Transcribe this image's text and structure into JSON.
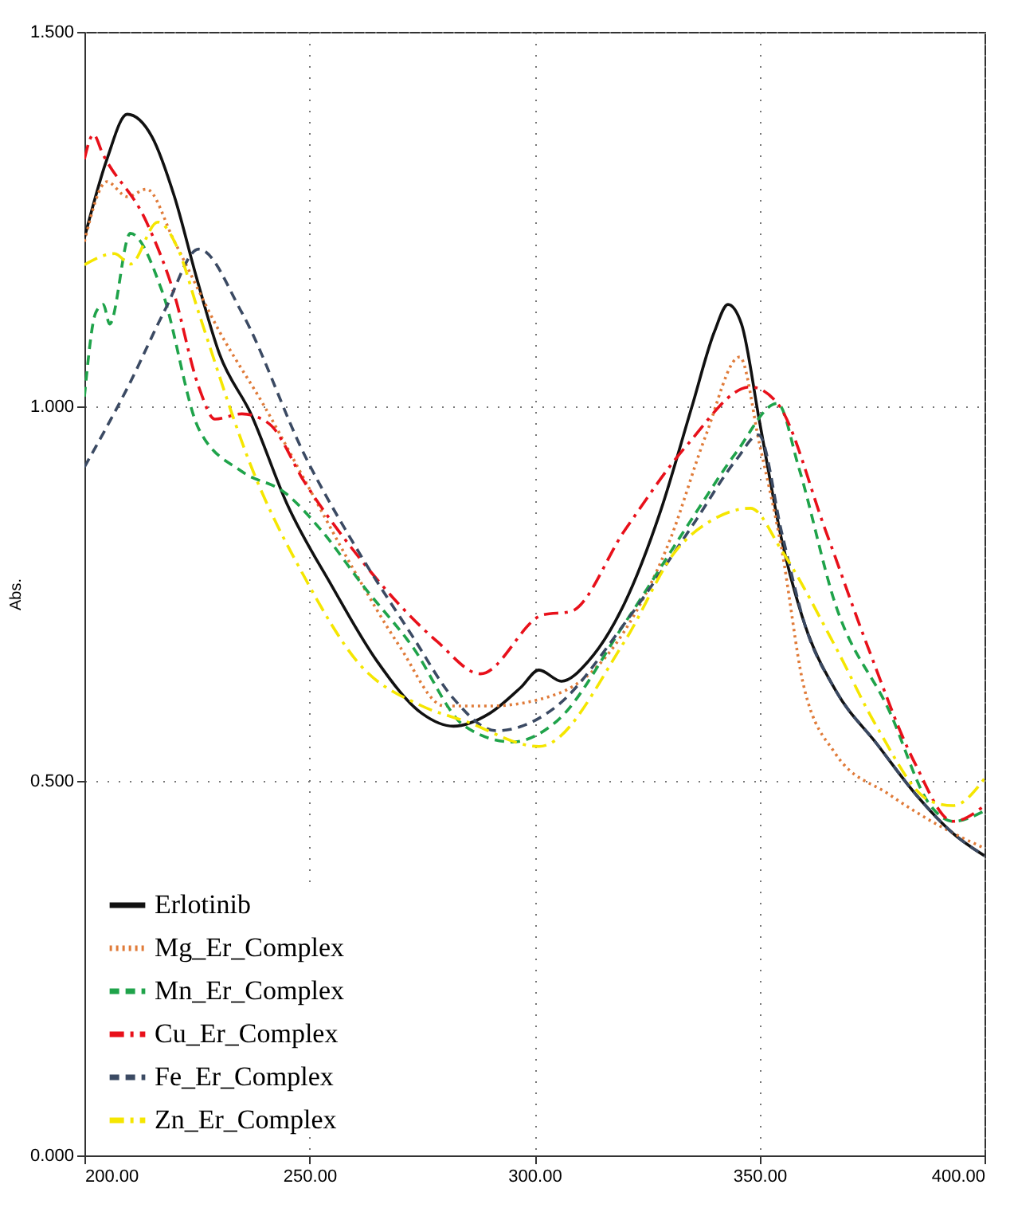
{
  "chart_data": {
    "type": "line",
    "ylabel": "Abs.",
    "xlim": [
      200,
      400
    ],
    "ylim": [
      0,
      1.5
    ],
    "xticks": [
      {
        "value": 200,
        "label": "200.00"
      },
      {
        "value": 250,
        "label": "250.00"
      },
      {
        "value": 300,
        "label": "300.00"
      },
      {
        "value": 350,
        "label": "350.00"
      },
      {
        "value": 400,
        "label": "400.00"
      }
    ],
    "yticks": [
      {
        "value": 0,
        "label": "0.000"
      },
      {
        "value": 0.5,
        "label": "0.500"
      },
      {
        "value": 1,
        "label": "1.000"
      },
      {
        "value": 1.5,
        "label": "1.500"
      }
    ],
    "grid": true,
    "legend": "bottom left",
    "series": [
      {
        "name": "Erlotinib",
        "color": "#111111",
        "line_style": "solid",
        "x": [
          200,
          205,
          209.5,
          215,
          220,
          225,
          230,
          237,
          245,
          255,
          265,
          275,
          282,
          290,
          297,
          301,
          306,
          312,
          320,
          328,
          335,
          340,
          343,
          346,
          350,
          355,
          360,
          367,
          376,
          385,
          393,
          400
        ],
        "values": [
          1.225,
          1.33,
          1.39,
          1.36,
          1.28,
          1.17,
          1.07,
          0.99,
          0.87,
          0.76,
          0.66,
          0.59,
          0.573,
          0.59,
          0.625,
          0.648,
          0.633,
          0.66,
          0.737,
          0.86,
          1.0,
          1.1,
          1.136,
          1.11,
          0.98,
          0.82,
          0.71,
          0.62,
          0.55,
          0.48,
          0.43,
          0.4
        ]
      },
      {
        "name": "Mg_Er_Complex",
        "color": "#e07b39",
        "line_style": "dotted",
        "x": [
          200,
          205,
          209.5,
          213.8,
          220,
          230,
          240,
          250,
          260,
          270,
          280,
          290,
          305,
          320,
          330,
          338,
          345.6,
          350,
          355,
          359.7,
          366.8,
          378.8,
          390,
          400
        ],
        "values": [
          1.22,
          1.3,
          1.28,
          1.29,
          1.22,
          1.1,
          1.0,
          0.89,
          0.78,
          0.68,
          0.6,
          0.6,
          0.616,
          0.7,
          0.82,
          0.96,
          1.066,
          0.95,
          0.807,
          0.63,
          0.537,
          0.482,
          0.44,
          0.41
        ]
      },
      {
        "name": "Mn_Er_Complex",
        "color": "#1fa34a",
        "line_style": "dashed",
        "x": [
          200,
          202.5,
          204.2,
          205.6,
          210.2,
          217.3,
          225.4,
          235,
          244.5,
          252.7,
          262,
          272.8,
          284.5,
          295,
          305,
          320,
          335,
          345,
          354,
          358.7,
          366.8,
          378.8,
          388,
          393,
          400
        ],
        "values": [
          1.013,
          1.125,
          1.136,
          1.11,
          1.231,
          1.153,
          0.97,
          0.913,
          0.885,
          0.834,
          0.76,
          0.68,
          0.573,
          0.552,
          0.58,
          0.71,
          0.85,
          0.94,
          1.004,
          0.919,
          0.737,
          0.594,
          0.467,
          0.446,
          0.46
        ]
      },
      {
        "name": "Cu_Er_Complex",
        "color": "#e8101a",
        "line_style": "dashdot",
        "x": [
          200,
          202,
          204,
          213.8,
          219.8,
          225.4,
          229,
          235,
          241,
          249,
          260.8,
          278.4,
          288,
          302,
          308,
          320,
          334,
          348,
          354,
          364.7,
          374,
          384.5,
          393,
          400
        ],
        "values": [
          1.33,
          1.363,
          1.338,
          1.246,
          1.153,
          1.026,
          0.983,
          0.99,
          0.977,
          0.898,
          0.8,
          0.686,
          0.643,
          0.722,
          0.726,
          0.834,
          0.949,
          1.026,
          1.004,
          0.834,
          0.68,
          0.524,
          0.446,
          0.467
        ]
      },
      {
        "name": "Fe_Er_Complex",
        "color": "#3b4a63",
        "line_style": "dashed",
        "x": [
          200,
          210,
          218,
          225.4,
          235,
          249,
          260.8,
          272.8,
          282,
          291.5,
          305,
          320,
          335,
          345,
          349.8,
          355,
          360,
          367,
          376,
          385,
          393,
          400
        ],
        "values": [
          0.919,
          1.03,
          1.13,
          1.21,
          1.125,
          0.934,
          0.807,
          0.694,
          0.61,
          0.567,
          0.6,
          0.71,
          0.84,
          0.93,
          0.962,
          0.83,
          0.71,
          0.62,
          0.55,
          0.48,
          0.43,
          0.4
        ]
      },
      {
        "name": "Zn_Er_Complex",
        "color": "#f5e600",
        "line_style": "dashdot",
        "x": [
          200,
          206.7,
          210.2,
          216.3,
          220.8,
          225.4,
          237.5,
          249,
          260.8,
          275,
          284.5,
          301,
          320,
          331.4,
          340,
          348,
          355,
          366.8,
          376,
          388,
          393,
          400
        ],
        "values": [
          1.189,
          1.204,
          1.19,
          1.246,
          1.21,
          1.125,
          0.913,
          0.771,
          0.658,
          0.6,
          0.58,
          0.546,
          0.686,
          0.807,
          0.85,
          0.864,
          0.807,
          0.68,
          0.573,
          0.473,
          0.467,
          0.503
        ]
      }
    ]
  }
}
